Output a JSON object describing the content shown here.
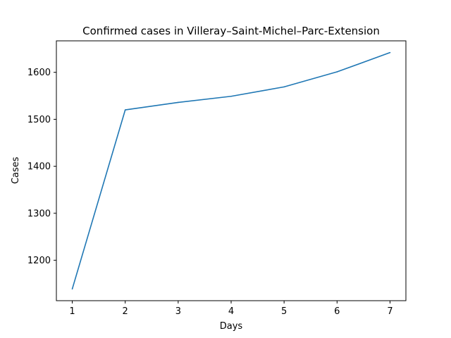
{
  "chart_data": {
    "type": "line",
    "title": "Confirmed cases in Villeray–Saint-Michel–Parc-Extension",
    "xlabel": "Days",
    "ylabel": "Cases",
    "x": [
      1,
      2,
      3,
      4,
      5,
      6,
      7
    ],
    "series": [
      {
        "values": [
          1139,
          1520,
          1536,
          1549,
          1569,
          1601,
          1642
        ]
      }
    ],
    "xlim": [
      0.7,
      7.3
    ],
    "ylim": [
      1114,
      1667
    ],
    "xticks": [
      1,
      2,
      3,
      4,
      5,
      6,
      7
    ],
    "yticks": [
      1200,
      1300,
      1400,
      1500,
      1600
    ],
    "grid": false,
    "line_color": "#1f77b4"
  }
}
